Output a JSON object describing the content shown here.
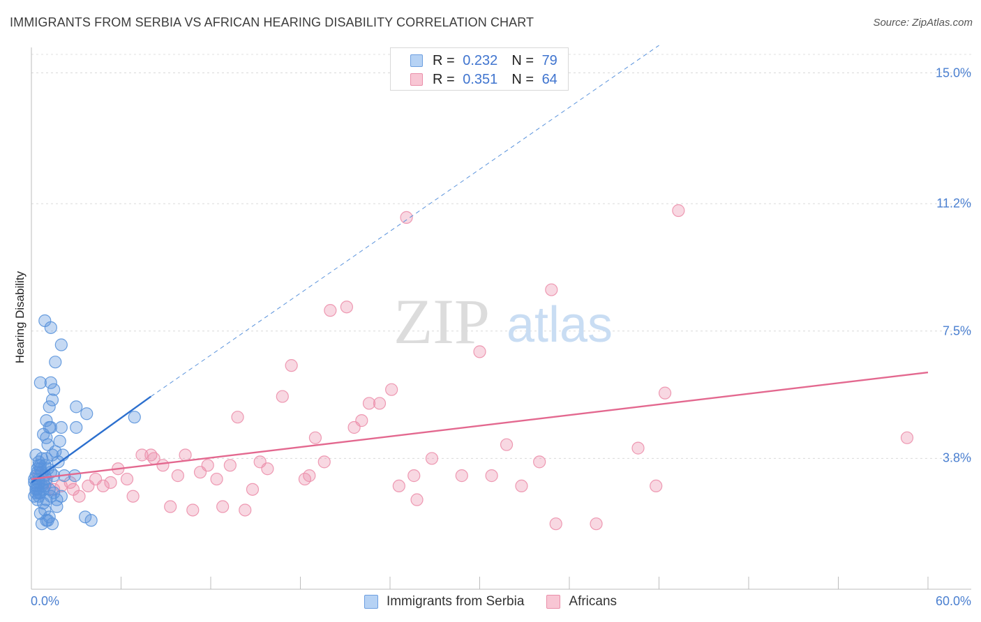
{
  "header": {
    "title": "IMMIGRANTS FROM SERBIA VS AFRICAN HEARING DISABILITY CORRELATION CHART",
    "source": "Source: ZipAtlas.com"
  },
  "watermark": {
    "zip": "ZIP",
    "atlas": "atlas"
  },
  "legend": {
    "serbia": {
      "r_label": "R =",
      "r_value": "0.232",
      "n_label": "N =",
      "n_value": "79"
    },
    "africans": {
      "r_label": "R =",
      "r_value": "0.351",
      "n_label": "N =",
      "n_value": "64"
    }
  },
  "colors": {
    "serbia": "#5a93dc",
    "africans": "#ec8fab",
    "serbia_line": "#2b6fce",
    "africans_line": "#e3688f",
    "tick_text": "#4a7fd0"
  },
  "chart_data": {
    "type": "scatter",
    "title": "IMMIGRANTS FROM SERBIA VS AFRICAN HEARING DISABILITY CORRELATION CHART",
    "xlabel": "",
    "ylabel": "Hearing Disability",
    "xlim": [
      0,
      60
    ],
    "ylim": [
      0,
      15.7
    ],
    "y_ticks": [
      3.8,
      7.5,
      11.2,
      15.0
    ],
    "y_tick_labels": [
      "3.8%",
      "7.5%",
      "11.2%",
      "15.0%"
    ],
    "x_tick_labels": [
      "0.0%",
      "60.0%"
    ],
    "legend_position": "top-center",
    "series": [
      {
        "name": "Immigrants from Serbia",
        "r": 0.232,
        "n": 79,
        "trend": {
          "x0": 0,
          "y0": 3.1,
          "x1": 8,
          "y1": 5.6,
          "x_end": 42,
          "y_end": 15.8
        },
        "points": [
          [
            0.3,
            3.3
          ],
          [
            0.4,
            3.0
          ],
          [
            0.2,
            2.7
          ],
          [
            0.5,
            2.8
          ],
          [
            0.6,
            3.5
          ],
          [
            0.3,
            3.9
          ],
          [
            0.8,
            3.1
          ],
          [
            1.0,
            3.8
          ],
          [
            0.4,
            2.6
          ],
          [
            0.7,
            3.4
          ],
          [
            0.5,
            3.2
          ],
          [
            1.2,
            2.9
          ],
          [
            0.9,
            3.6
          ],
          [
            0.3,
            3.0
          ],
          [
            0.6,
            2.8
          ],
          [
            1.1,
            4.2
          ],
          [
            0.2,
            3.1
          ],
          [
            0.8,
            2.5
          ],
          [
            1.3,
            2.7
          ],
          [
            1.5,
            3.3
          ],
          [
            0.5,
            3.7
          ],
          [
            0.4,
            3.4
          ],
          [
            0.9,
            3.0
          ],
          [
            1.7,
            2.4
          ],
          [
            0.6,
            2.2
          ],
          [
            1.0,
            2.0
          ],
          [
            1.2,
            2.1
          ],
          [
            0.7,
            1.9
          ],
          [
            1.4,
            1.9
          ],
          [
            1.1,
            2.0
          ],
          [
            0.3,
            2.8
          ],
          [
            0.5,
            3.1
          ],
          [
            1.0,
            4.4
          ],
          [
            1.2,
            4.7
          ],
          [
            1.6,
            4.0
          ],
          [
            2.0,
            4.7
          ],
          [
            1.9,
            4.3
          ],
          [
            2.1,
            3.9
          ],
          [
            1.3,
            4.7
          ],
          [
            0.8,
            4.5
          ],
          [
            1.0,
            4.9
          ],
          [
            1.2,
            5.3
          ],
          [
            1.4,
            5.5
          ],
          [
            1.3,
            6.0
          ],
          [
            0.6,
            6.0
          ],
          [
            1.5,
            5.8
          ],
          [
            1.6,
            6.6
          ],
          [
            2.0,
            7.1
          ],
          [
            1.3,
            7.6
          ],
          [
            0.9,
            7.8
          ],
          [
            3.0,
            5.3
          ],
          [
            3.7,
            5.1
          ],
          [
            3.0,
            4.7
          ],
          [
            6.9,
            5.0
          ],
          [
            2.2,
            3.3
          ],
          [
            2.9,
            3.3
          ],
          [
            1.7,
            2.6
          ],
          [
            2.0,
            2.7
          ],
          [
            3.6,
            2.1
          ],
          [
            4.0,
            2.0
          ],
          [
            1.0,
            2.6
          ],
          [
            0.4,
            2.9
          ],
          [
            0.2,
            3.2
          ],
          [
            0.7,
            3.8
          ],
          [
            1.4,
            3.9
          ],
          [
            1.8,
            3.7
          ],
          [
            0.9,
            3.3
          ],
          [
            0.5,
            2.7
          ],
          [
            0.3,
            2.9
          ],
          [
            1.1,
            3.5
          ],
          [
            0.6,
            3.6
          ],
          [
            0.8,
            2.9
          ],
          [
            1.5,
            2.8
          ],
          [
            0.4,
            3.5
          ],
          [
            1.0,
            3.2
          ],
          [
            0.7,
            3.0
          ],
          [
            1.3,
            3.4
          ],
          [
            0.9,
            2.3
          ],
          [
            0.5,
            3.6
          ]
        ]
      },
      {
        "name": "Africans",
        "r": 0.351,
        "n": 64,
        "trend": {
          "x0": 0,
          "y0": 3.2,
          "x1": 60,
          "y1": 6.3
        },
        "points": [
          [
            0.5,
            3.3
          ],
          [
            1.0,
            3.1
          ],
          [
            1.5,
            2.9
          ],
          [
            2.0,
            3.0
          ],
          [
            2.6,
            3.1
          ],
          [
            3.2,
            2.7
          ],
          [
            3.8,
            3.0
          ],
          [
            4.3,
            3.2
          ],
          [
            4.8,
            3.0
          ],
          [
            5.3,
            3.1
          ],
          [
            5.8,
            3.5
          ],
          [
            6.4,
            3.2
          ],
          [
            6.8,
            2.7
          ],
          [
            7.4,
            3.9
          ],
          [
            8.0,
            3.9
          ],
          [
            8.2,
            3.8
          ],
          [
            8.8,
            3.6
          ],
          [
            9.3,
            2.4
          ],
          [
            9.8,
            3.3
          ],
          [
            10.3,
            3.9
          ],
          [
            10.8,
            2.3
          ],
          [
            11.3,
            3.4
          ],
          [
            11.8,
            3.6
          ],
          [
            12.4,
            3.2
          ],
          [
            12.8,
            2.4
          ],
          [
            13.3,
            3.6
          ],
          [
            13.8,
            5.0
          ],
          [
            14.3,
            2.3
          ],
          [
            14.8,
            2.9
          ],
          [
            15.3,
            3.7
          ],
          [
            15.8,
            3.5
          ],
          [
            16.8,
            5.6
          ],
          [
            17.4,
            6.5
          ],
          [
            18.3,
            3.2
          ],
          [
            18.6,
            3.3
          ],
          [
            19.0,
            4.4
          ],
          [
            19.6,
            3.7
          ],
          [
            20.0,
            8.1
          ],
          [
            21.1,
            8.2
          ],
          [
            21.6,
            4.7
          ],
          [
            22.1,
            4.9
          ],
          [
            22.6,
            5.4
          ],
          [
            23.3,
            5.4
          ],
          [
            24.1,
            5.8
          ],
          [
            24.6,
            3.0
          ],
          [
            25.1,
            10.8
          ],
          [
            25.6,
            3.3
          ],
          [
            25.8,
            2.6
          ],
          [
            26.8,
            3.8
          ],
          [
            28.8,
            3.3
          ],
          [
            30.0,
            6.9
          ],
          [
            30.8,
            3.3
          ],
          [
            31.8,
            4.2
          ],
          [
            32.8,
            3.0
          ],
          [
            34.0,
            3.7
          ],
          [
            34.8,
            8.7
          ],
          [
            35.1,
            1.9
          ],
          [
            37.8,
            1.9
          ],
          [
            40.6,
            4.1
          ],
          [
            41.8,
            3.0
          ],
          [
            42.4,
            5.7
          ],
          [
            43.3,
            11.0
          ],
          [
            58.6,
            4.4
          ],
          [
            2.8,
            2.9
          ]
        ]
      }
    ]
  }
}
